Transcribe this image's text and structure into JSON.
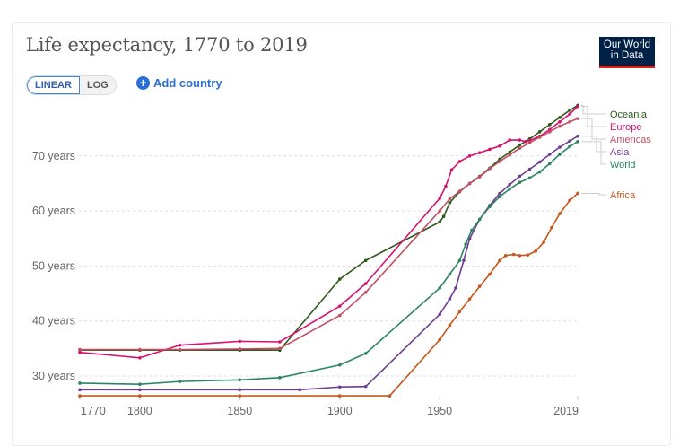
{
  "header": {
    "title": "Life expectancy, 1770 to 2019",
    "logo_line1": "Our World",
    "logo_line2": "in Data"
  },
  "controls": {
    "scale_options": [
      "LINEAR",
      "LOG"
    ],
    "active_scale": "LINEAR",
    "add_country_label": "Add country"
  },
  "chart_data": {
    "type": "line",
    "title": "Life expectancy, 1770 to 2019",
    "xlabel": "",
    "ylabel": "",
    "xlim": [
      1770,
      2019
    ],
    "ylim": [
      26,
      80
    ],
    "x_ticks": [
      1770,
      1800,
      1850,
      1900,
      1950,
      2019
    ],
    "y_ticks": [
      30,
      40,
      50,
      60,
      70
    ],
    "y_tick_suffix": " years",
    "grid": "horizontal-dashed",
    "legend": "right-end-labels",
    "series": [
      {
        "name": "Oceania",
        "color": "#2d5a1b",
        "x": [
          1770,
          1800,
          1820,
          1850,
          1870,
          1900,
          1913,
          1950,
          1952,
          1955,
          1960,
          1965,
          1970,
          1975,
          1980,
          1985,
          1990,
          1995,
          2000,
          2005,
          2010,
          2015,
          2019
        ],
        "y": [
          34.7,
          34.7,
          34.7,
          34.7,
          34.7,
          47.6,
          51.0,
          58.0,
          59.0,
          61.5,
          63.5,
          65.0,
          66.3,
          67.8,
          69.4,
          70.7,
          72.0,
          73.1,
          74.4,
          75.7,
          77.0,
          78.3,
          79.2
        ]
      },
      {
        "name": "Europe",
        "color": "#d6126f",
        "x": [
          1770,
          1800,
          1820,
          1850,
          1870,
          1900,
          1913,
          1950,
          1953,
          1956,
          1960,
          1965,
          1970,
          1975,
          1980,
          1985,
          1990,
          1993,
          1995,
          2000,
          2005,
          2010,
          2015,
          2019
        ],
        "y": [
          34.3,
          33.3,
          35.6,
          36.3,
          36.2,
          42.7,
          46.8,
          62.3,
          64.5,
          67.5,
          69.0,
          70.0,
          70.6,
          71.2,
          71.8,
          72.9,
          72.9,
          72.6,
          72.8,
          73.6,
          74.8,
          76.2,
          77.6,
          79.0
        ]
      },
      {
        "name": "Americas",
        "color": "#c15065",
        "x": [
          1770,
          1800,
          1820,
          1850,
          1870,
          1900,
          1913,
          1950,
          1955,
          1960,
          1965,
          1970,
          1975,
          1980,
          1985,
          1990,
          1995,
          2000,
          2005,
          2010,
          2015,
          2019
        ],
        "y": [
          34.8,
          34.8,
          34.8,
          34.9,
          35.0,
          41.0,
          45.2,
          60.0,
          62.2,
          63.6,
          65.0,
          66.2,
          67.7,
          69.0,
          70.2,
          71.4,
          72.4,
          73.4,
          74.4,
          75.4,
          76.2,
          76.8
        ]
      },
      {
        "name": "Asia",
        "color": "#6d3e91",
        "x": [
          1770,
          1800,
          1850,
          1880,
          1900,
          1913,
          1950,
          1955,
          1958,
          1962,
          1965,
          1970,
          1975,
          1980,
          1985,
          1990,
          1995,
          2000,
          2005,
          2010,
          2015,
          2019
        ],
        "y": [
          27.5,
          27.5,
          27.5,
          27.5,
          28.0,
          28.1,
          41.2,
          44.0,
          46.0,
          51.0,
          55.0,
          58.5,
          61.0,
          63.2,
          64.8,
          66.3,
          67.6,
          68.9,
          70.3,
          71.6,
          72.7,
          73.6
        ]
      },
      {
        "name": "World",
        "color": "#2c8465",
        "x": [
          1770,
          1800,
          1820,
          1850,
          1870,
          1900,
          1913,
          1950,
          1955,
          1960,
          1963,
          1966,
          1970,
          1975,
          1980,
          1985,
          1990,
          1995,
          2000,
          2005,
          2010,
          2015,
          2019
        ],
        "y": [
          28.7,
          28.5,
          29.0,
          29.3,
          29.7,
          32.0,
          34.1,
          46.0,
          48.5,
          51.0,
          54.0,
          56.5,
          58.5,
          60.8,
          62.6,
          64.0,
          65.2,
          66.0,
          67.1,
          68.6,
          70.3,
          71.7,
          72.6
        ]
      },
      {
        "name": "Africa",
        "color": "#c4581d",
        "x": [
          1770,
          1800,
          1850,
          1900,
          1925,
          1950,
          1955,
          1960,
          1965,
          1970,
          1975,
          1980,
          1983,
          1987,
          1990,
          1994,
          1998,
          2002,
          2006,
          2010,
          2015,
          2019
        ],
        "y": [
          26.4,
          26.4,
          26.4,
          26.4,
          26.4,
          36.6,
          39.2,
          41.7,
          44.0,
          46.3,
          48.5,
          51.0,
          51.9,
          52.1,
          51.9,
          52.0,
          52.7,
          54.3,
          57.0,
          59.5,
          61.9,
          63.2
        ]
      }
    ]
  }
}
